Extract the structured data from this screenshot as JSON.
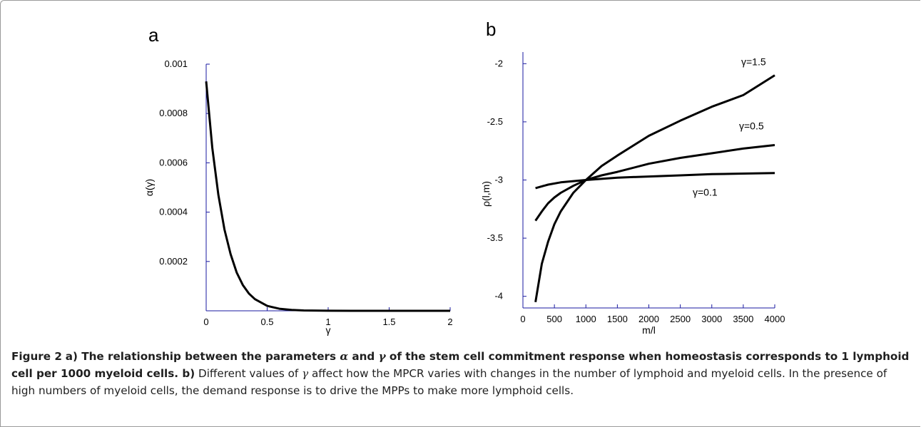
{
  "chart_data": [
    {
      "panel": "a",
      "type": "line",
      "xlabel": "γ",
      "ylabel": "α(γ)",
      "xlim": [
        0,
        2
      ],
      "ylim": [
        0,
        0.001
      ],
      "xticks": [
        "0",
        "0.5",
        "1",
        "1.5",
        "2"
      ],
      "yticks": [
        "0.0002",
        "0.0004",
        "0.0006",
        "0.0008",
        "0.001"
      ],
      "series": [
        {
          "x": [
            0,
            0.05,
            0.1,
            0.15,
            0.2,
            0.25,
            0.3,
            0.35,
            0.4,
            0.5,
            0.6,
            0.7,
            0.8,
            1.0,
            1.2,
            1.5,
            2.0
          ],
          "y": [
            0.00093,
            0.00066,
            0.00047,
            0.00033,
            0.00023,
            0.000155,
            0.000105,
            7e-05,
            4.7e-05,
            2e-05,
            8.5e-06,
            3.5e-06,
            1.5e-06,
            3e-07,
            1e-07,
            0,
            0
          ]
        }
      ]
    },
    {
      "panel": "b",
      "type": "line",
      "xlabel": "m/l",
      "ylabel": "ρ(l,m)",
      "xlim": [
        0,
        4000
      ],
      "ylim": [
        -4.1,
        -1.9
      ],
      "xticks": [
        "0",
        "500",
        "1000",
        "1500",
        "2000",
        "2500",
        "3000",
        "3500",
        "4000"
      ],
      "yticks": [
        "-4",
        "-3.5",
        "-3",
        "-2.5",
        "-2"
      ],
      "series": [
        {
          "name": "γ=1.5",
          "x": [
            200,
            300,
            400,
            500,
            600,
            800,
            1000,
            1250,
            1500,
            2000,
            2500,
            3000,
            3500,
            4000
          ],
          "y": [
            -4.05,
            -3.72,
            -3.53,
            -3.38,
            -3.27,
            -3.11,
            -3.0,
            -2.88,
            -2.79,
            -2.62,
            -2.49,
            -2.37,
            -2.27,
            -2.1
          ]
        },
        {
          "name": "γ=0.5",
          "x": [
            200,
            300,
            400,
            500,
            600,
            800,
            1000,
            1250,
            1500,
            2000,
            2500,
            3000,
            3500,
            4000
          ],
          "y": [
            -3.35,
            -3.27,
            -3.2,
            -3.15,
            -3.11,
            -3.05,
            -3.0,
            -2.96,
            -2.93,
            -2.86,
            -2.81,
            -2.77,
            -2.73,
            -2.7
          ]
        },
        {
          "name": "γ=0.1",
          "x": [
            200,
            400,
            600,
            800,
            1000,
            1500,
            2000,
            2500,
            3000,
            3500,
            4000
          ],
          "y": [
            -3.07,
            -3.04,
            -3.02,
            -3.01,
            -3.0,
            -2.98,
            -2.97,
            -2.96,
            -2.95,
            -2.945,
            -2.94
          ]
        }
      ]
    }
  ],
  "caption": {
    "fig_label": "Figure 2",
    "part_a_letter": "a",
    "part_a_1": ") The relationship between the parameters ",
    "alpha": "α",
    "and_text": " and ",
    "gamma": "γ",
    "part_a_2": " of the stem cell commitment response when homeostasis corresponds to 1 lymphoid cell per 1000 myeloid cells.",
    "part_b_letter": " b)",
    "part_b_1": " Different values of ",
    "part_b_gamma": "γ",
    "part_b_2": " affect how the MPCR varies with changes in the number of lymphoid and myeloid cells. In the presence of high numbers of myeloid cells, the demand response is to drive the MPPs to make more lymphoid cells."
  }
}
